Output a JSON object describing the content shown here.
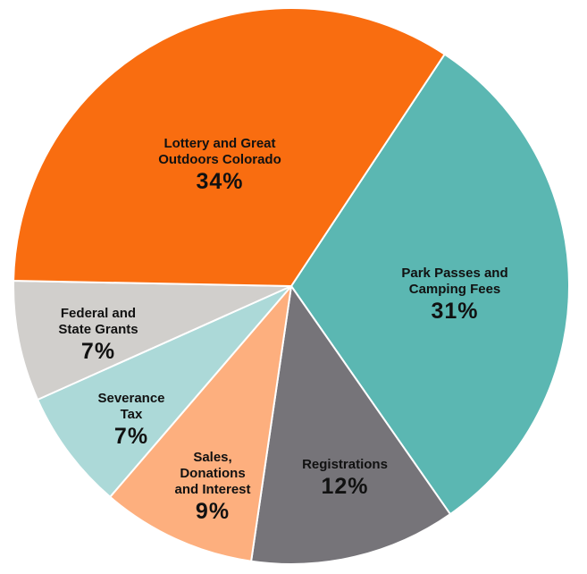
{
  "chart_data": {
    "type": "pie",
    "categories": [
      "Park Passes and\nCamping Fees",
      "Registrations",
      "Sales,\nDonations\nand Interest",
      "Severance\nTax",
      "Federal and\nState Grants",
      "Lottery and Great\nOutdoors Colorado"
    ],
    "values": [
      31,
      12,
      9,
      7,
      7,
      34
    ],
    "value_labels": [
      "31%",
      "12%",
      "9%",
      "7%",
      "7%",
      "34%"
    ],
    "colors": [
      "#5bb7b2",
      "#767479",
      "#fdaf7e",
      "#acd9d8",
      "#d1cfcc",
      "#f96d10"
    ]
  }
}
